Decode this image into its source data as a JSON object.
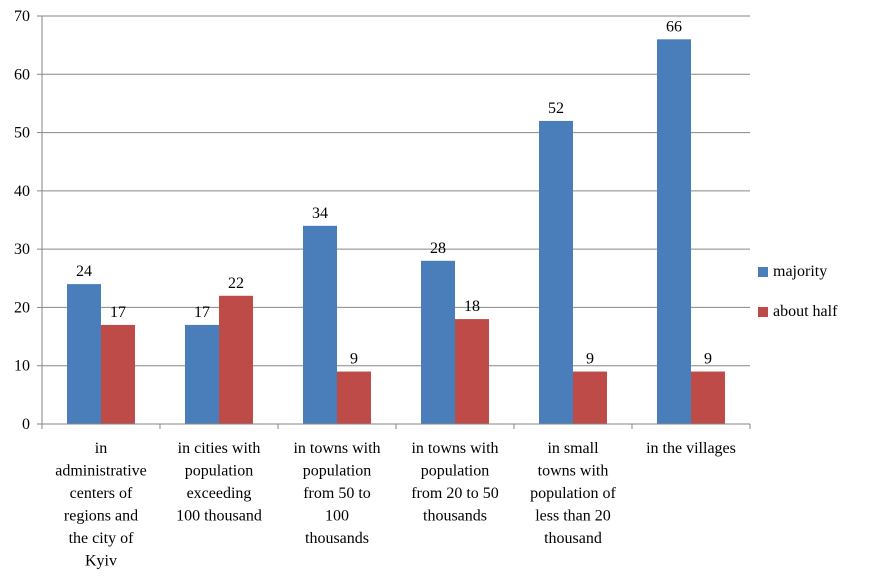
{
  "chart_data": {
    "type": "bar",
    "categories": [
      [
        "in",
        "administrative",
        "centers of",
        "regions and",
        "the city of",
        "Kyiv"
      ],
      [
        "in cities with",
        "population",
        "exceeding",
        "100 thousand"
      ],
      [
        "in towns with",
        "population",
        "from 50 to",
        "100",
        "thousands"
      ],
      [
        "in towns with",
        "population",
        "from 20 to 50",
        "thousands"
      ],
      [
        "in small",
        "towns with",
        "population of",
        "less than 20",
        "thousand"
      ],
      [
        "in the villages"
      ]
    ],
    "series": [
      {
        "name": "majority",
        "color": "#4A7EBB",
        "values": [
          24,
          17,
          34,
          28,
          52,
          66
        ]
      },
      {
        "name": "about half",
        "color": "#BE4B48",
        "values": [
          17,
          22,
          9,
          18,
          9,
          9
        ]
      }
    ],
    "ylim": [
      0,
      70
    ],
    "yticks": [
      "0",
      "10",
      "20",
      "30",
      "40",
      "50",
      "60",
      "70"
    ],
    "grid": true,
    "legend_position": "right"
  }
}
